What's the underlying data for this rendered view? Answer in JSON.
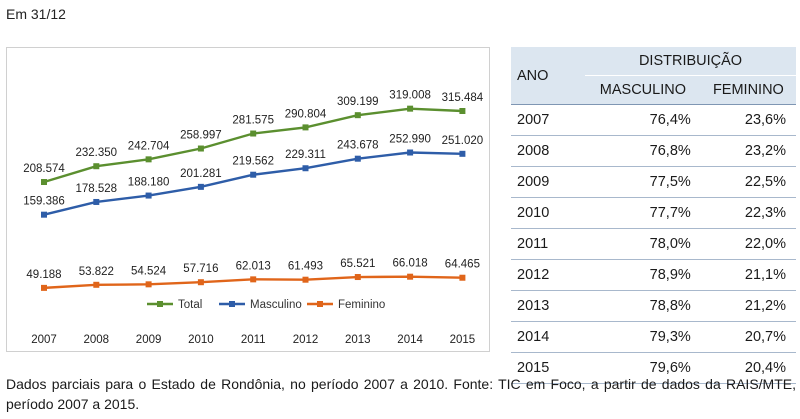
{
  "heading": "Em 31/12",
  "chart_data": {
    "type": "line",
    "categories": [
      "2007",
      "2008",
      "2009",
      "2010",
      "2011",
      "2012",
      "2013",
      "2014",
      "2015"
    ],
    "series": [
      {
        "name": "Total",
        "color": "#5b8f2f",
        "marker": "square",
        "values": [
          208574,
          232350,
          242704,
          258997,
          281575,
          290804,
          309199,
          319008,
          315484
        ],
        "labels": [
          "208.574",
          "232.350",
          "242.704",
          "258.997",
          "281.575",
          "290.804",
          "309.199",
          "319.008",
          "315.484"
        ]
      },
      {
        "name": "Masculino",
        "color": "#2e5da8",
        "marker": "square",
        "values": [
          159386,
          178528,
          188180,
          201281,
          219562,
          229311,
          243678,
          252990,
          251020
        ],
        "labels": [
          "159.386",
          "178.528",
          "188.180",
          "201.281",
          "219.562",
          "229.311",
          "243.678",
          "252.990",
          "251.020"
        ]
      },
      {
        "name": "Feminino",
        "color": "#e0651a",
        "marker": "square",
        "values": [
          49188,
          53822,
          54524,
          57716,
          62013,
          61493,
          65521,
          66018,
          64465
        ],
        "labels": [
          "49.188",
          "53.822",
          "54.524",
          "57.716",
          "62.013",
          "61.493",
          "65.521",
          "66.018",
          "64.465"
        ]
      }
    ],
    "legend_position": "bottom",
    "grid": false
  },
  "table": {
    "col_year": "ANO",
    "col_group": "DISTRIBUIÇÃO",
    "col_male": "MASCULINO",
    "col_female": "FEMININO",
    "rows": [
      {
        "year": "2007",
        "male": "76,4%",
        "female": "23,6%"
      },
      {
        "year": "2008",
        "male": "76,8%",
        "female": "23,2%"
      },
      {
        "year": "2009",
        "male": "77,5%",
        "female": "22,5%"
      },
      {
        "year": "2010",
        "male": "77,7%",
        "female": "22,3%"
      },
      {
        "year": "2011",
        "male": "78,0%",
        "female": "22,0%"
      },
      {
        "year": "2012",
        "male": "78,9%",
        "female": "21,1%"
      },
      {
        "year": "2013",
        "male": "78,8%",
        "female": "21,2%"
      },
      {
        "year": "2014",
        "male": "79,3%",
        "female": "20,7%"
      },
      {
        "year": "2015",
        "male": "79,6%",
        "female": "20,4%"
      }
    ]
  },
  "footnote": "Dados parciais para o Estado de Rondônia, no período 2007 a 2010. Fonte: TIC em Foco, a partir de dados da RAIS/MTE, período 2007 a 2015."
}
